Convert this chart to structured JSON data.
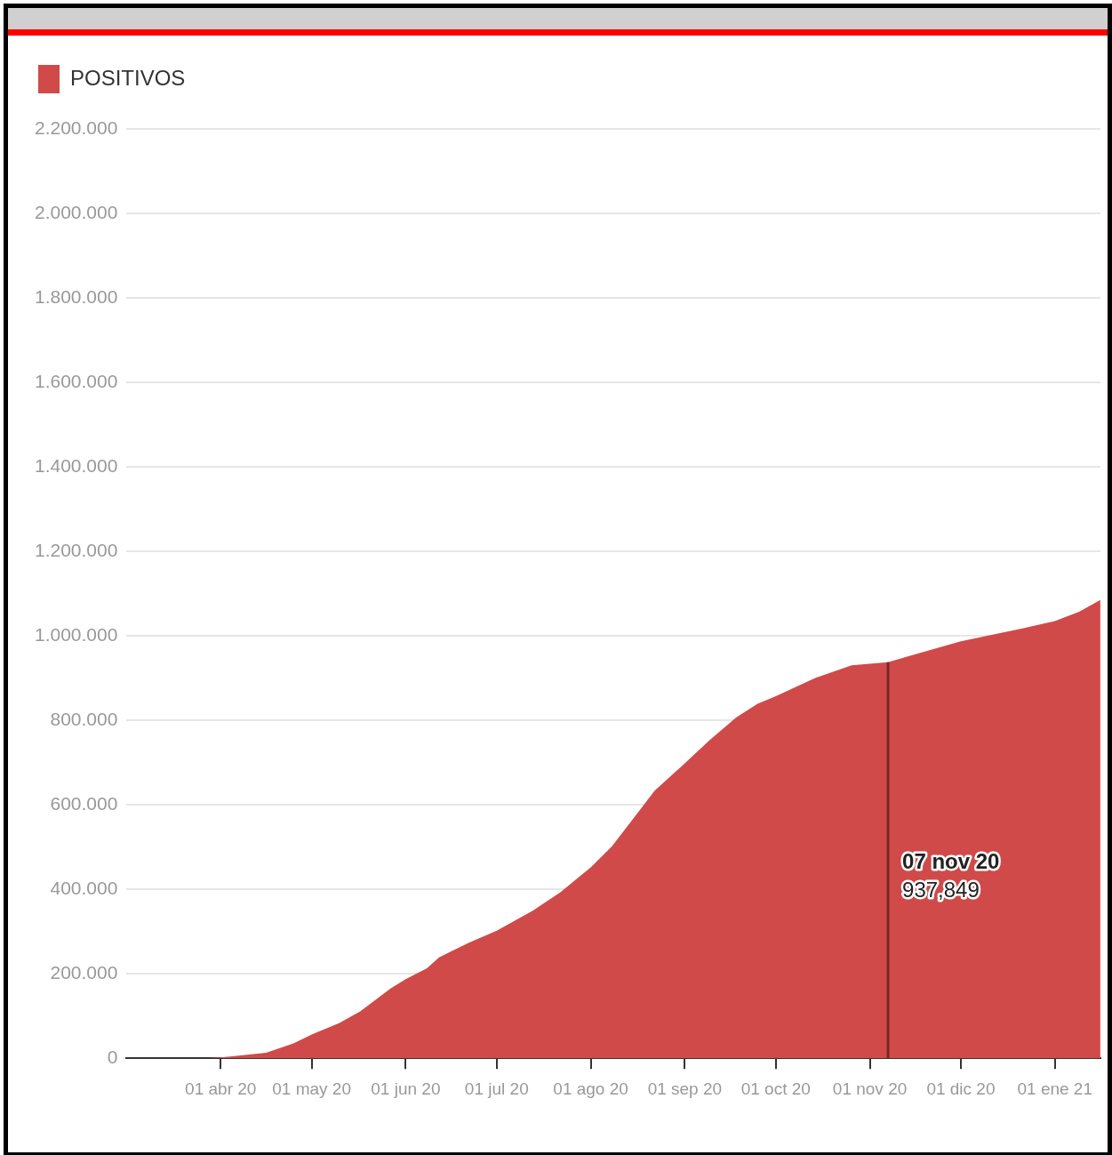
{
  "chart_data": {
    "type": "area",
    "x": [
      "2020-03-01",
      "2020-03-20",
      "2020-03-26",
      "2020-04-01",
      "2020-04-16",
      "2020-04-25",
      "2020-05-01",
      "2020-05-10",
      "2020-05-17",
      "2020-05-27",
      "2020-06-01",
      "2020-06-08",
      "2020-06-12",
      "2020-06-22",
      "2020-07-01",
      "2020-07-13",
      "2020-07-22",
      "2020-08-01",
      "2020-08-08",
      "2020-08-15",
      "2020-08-22",
      "2020-09-01",
      "2020-09-09",
      "2020-09-18",
      "2020-09-25",
      "2020-10-01",
      "2020-10-14",
      "2020-10-26",
      "2020-11-07",
      "2020-12-01",
      "2020-12-21",
      "2021-01-01",
      "2021-01-09",
      "2021-01-16"
    ],
    "series": [
      {
        "name": "POSITIVOS",
        "color": "#d04a4a",
        "values": [
          0,
          0,
          0,
          2000,
          13000,
          35000,
          56000,
          83000,
          111000,
          165000,
          187000,
          213000,
          239000,
          274000,
          302000,
          350000,
          393000,
          452000,
          502000,
          567000,
          633000,
          698000,
          752000,
          807000,
          839000,
          857000,
          900000,
          930000,
          937849,
          987000,
          1017000,
          1035000,
          1057000,
          1085000
        ]
      }
    ],
    "xlim": [
      "2020-03-01",
      "2021-01-16"
    ],
    "xticks": [
      {
        "value": "2020-04-01",
        "label": "01 abr 20"
      },
      {
        "value": "2020-05-01",
        "label": "01 may 20"
      },
      {
        "value": "2020-06-01",
        "label": "01 jun 20"
      },
      {
        "value": "2020-07-01",
        "label": "01 jul 20"
      },
      {
        "value": "2020-08-01",
        "label": "01 ago 20"
      },
      {
        "value": "2020-09-01",
        "label": "01 sep 20"
      },
      {
        "value": "2020-10-01",
        "label": "01 oct 20"
      },
      {
        "value": "2020-11-01",
        "label": "01 nov 20"
      },
      {
        "value": "2020-12-01",
        "label": "01 dic 20"
      },
      {
        "value": "2021-01-01",
        "label": "01 ene 21"
      }
    ],
    "ylim": [
      0,
      2200000
    ],
    "yticks": [
      0,
      {
        "value": 200000,
        "label": "200.000"
      },
      {
        "value": 400000,
        "label": "400.000"
      },
      {
        "value": 600000,
        "label": "600.000"
      },
      {
        "value": 800000,
        "label": "800.000"
      },
      {
        "value": 1000000,
        "label": "1.000.000"
      },
      {
        "value": 1200000,
        "label": "1.200.000"
      },
      {
        "value": 1400000,
        "label": "1.400.000"
      },
      {
        "value": 1600000,
        "label": "1.600.000"
      },
      {
        "value": 1800000,
        "label": "1.800.000"
      },
      {
        "value": 2000000,
        "label": "2.000.000"
      },
      {
        "value": 2200000,
        "label": "2.200.000"
      }
    ],
    "grid": "y",
    "legend": "top left",
    "ref_lines": [
      {
        "axis": "x",
        "value": "2020-11-07",
        "label": "07 nov 20\n937,849",
        "color": "#7a2626"
      }
    ]
  }
}
